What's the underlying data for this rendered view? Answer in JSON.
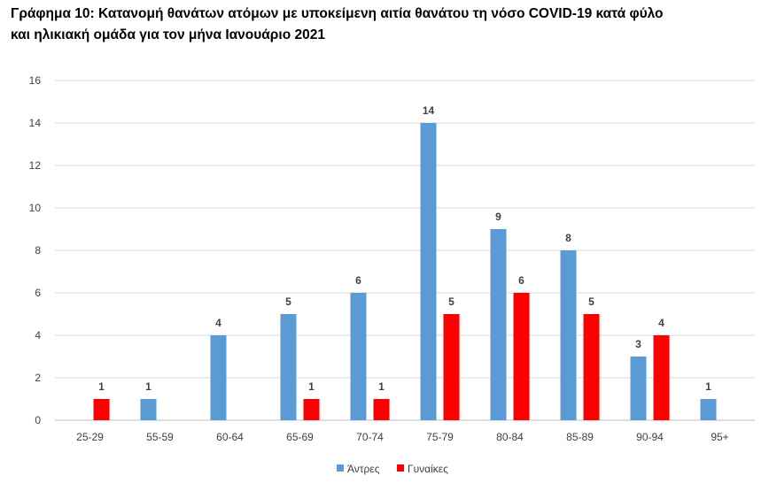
{
  "chart_data": {
    "type": "bar",
    "title_line1": "Γράφημα 10: Κατανομή θανάτων ατόμων με υποκείμενη αιτία θανάτου τη νόσο COVID-19 κατά φύλο",
    "title_line2": "και ηλικιακή ομάδα για τον μήνα Ιανουάριο 2021",
    "categories": [
      "25-29",
      "55-59",
      "60-64",
      "65-69",
      "70-74",
      "75-79",
      "80-84",
      "85-89",
      "90-94",
      "95+"
    ],
    "series": [
      {
        "name": "Άντρες",
        "color": "#5b9bd5",
        "values": [
          0,
          1,
          4,
          5,
          6,
          14,
          9,
          8,
          3,
          1
        ]
      },
      {
        "name": "Γυναίκες",
        "color": "#ff0000",
        "values": [
          1,
          0,
          0,
          1,
          1,
          5,
          6,
          5,
          4,
          0
        ]
      }
    ],
    "ylim": [
      0,
      16
    ],
    "yticks": [
      0,
      2,
      4,
      6,
      8,
      10,
      12,
      14,
      16
    ],
    "grid": true,
    "legend_position": "bottom"
  }
}
